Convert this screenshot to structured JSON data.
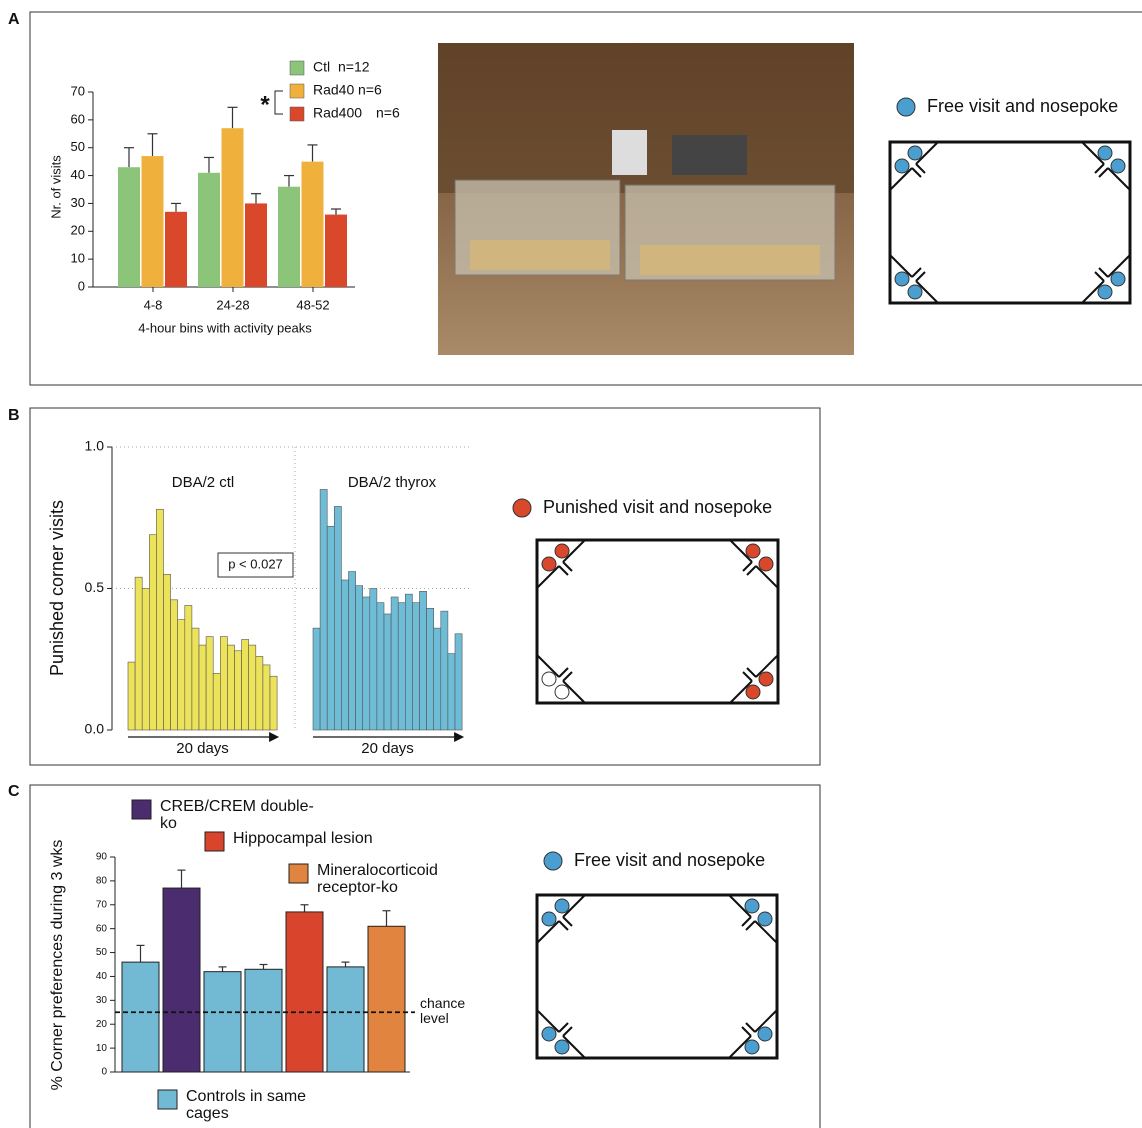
{
  "panel_labels": [
    "A",
    "B",
    "C"
  ],
  "diagrams": [
    {
      "legend": "Free visit and nosepoke",
      "dot_color": "#4a9fd0"
    },
    {
      "legend": "Punished visit and nosepoke",
      "dot_color": "#d9482b"
    },
    {
      "legend": "Free visit and nosepoke",
      "dot_color": "#4a9fd0"
    }
  ],
  "chart_data": [
    {
      "type": "bar",
      "categories": [
        "4-8",
        "24-28",
        "48-52"
      ],
      "series": [
        {
          "name": "Ctl",
          "n_label": "n=12",
          "color": "#8cc57a",
          "values": [
            43,
            41,
            36
          ],
          "errors": [
            7,
            5.5,
            4
          ]
        },
        {
          "name": "Rad40",
          "n_label": "n=6",
          "color": "#f0b13c",
          "values": [
            47,
            57,
            45
          ],
          "errors": [
            8,
            7.5,
            6
          ]
        },
        {
          "name": "Rad400",
          "n_label": "n=6",
          "color": "#d9482b",
          "values": [
            27,
            30,
            26
          ],
          "errors": [
            3,
            3.5,
            2
          ]
        }
      ],
      "ylim": [
        0,
        70
      ],
      "yticks": [
        0,
        10,
        20,
        30,
        40,
        50,
        60,
        70
      ],
      "ylabel": "Nr. of visits",
      "xlabel": "4-hour bins with activity peaks",
      "annotation": "*"
    },
    {
      "type": "bar",
      "series": [
        {
          "name": "DBA/2 ctl",
          "xlabel": "20 days",
          "color": "#ede35a",
          "values": [
            0.24,
            0.54,
            0.5,
            0.69,
            0.78,
            0.55,
            0.46,
            0.39,
            0.44,
            0.36,
            0.3,
            0.33,
            0.2,
            0.33,
            0.3,
            0.28,
            0.32,
            0.3,
            0.26,
            0.23,
            0.19
          ]
        },
        {
          "name": "DBA/2 thyrox",
          "xlabel": "20 days",
          "color": "#6fbcd6",
          "values": [
            0.36,
            0.85,
            0.72,
            0.79,
            0.53,
            0.56,
            0.51,
            0.47,
            0.5,
            0.45,
            0.41,
            0.47,
            0.45,
            0.48,
            0.45,
            0.49,
            0.43,
            0.36,
            0.42,
            0.27,
            0.34
          ]
        }
      ],
      "ylim": [
        0,
        1
      ],
      "yticks": [
        {
          "value": 0,
          "label": "0.0"
        },
        {
          "value": 0.5,
          "label": "0.5"
        },
        {
          "value": 1,
          "label": "1.0"
        }
      ],
      "grid": true,
      "ylabel": "Punished corner visits",
      "annotation": "p < 0.027"
    },
    {
      "type": "bar",
      "values": [
        46,
        77,
        42,
        43,
        67,
        44,
        61
      ],
      "errors": [
        7,
        7.5,
        2,
        2,
        3,
        2,
        6.5
      ],
      "colors": [
        "#72b9d4",
        "#4b2c6f",
        "#72b9d4",
        "#72b9d4",
        "#d9452c",
        "#72b9d4",
        "#e0843f"
      ],
      "legend": [
        {
          "name": "CREB/CREM double-ko",
          "color": "#4b2c6f"
        },
        {
          "name": "Hippocampal lesion",
          "color": "#d9452c"
        },
        {
          "name": "Mineralocorticoid receptor-ko",
          "color": "#e0843f"
        },
        {
          "name": "Controls in same cages",
          "color": "#72b9d4"
        }
      ],
      "ylim": [
        0,
        90
      ],
      "yticks": [
        0,
        10,
        20,
        30,
        40,
        50,
        60,
        70,
        80,
        90
      ],
      "ylabel": "% Corner preferences during 3 wks",
      "reference_line": {
        "value": 25,
        "label": "chance level"
      }
    }
  ]
}
